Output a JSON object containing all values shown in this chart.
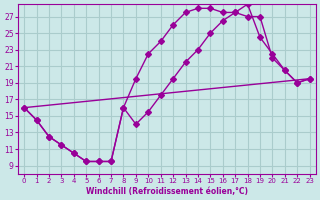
{
  "xlabel": "Windchill (Refroidissement éolien,°C)",
  "bg_color": "#cce8e8",
  "grid_color": "#aacccc",
  "line_color": "#990099",
  "marker_color": "#990099",
  "xlim": [
    -0.5,
    23.5
  ],
  "ylim": [
    8,
    28.5
  ],
  "xticks": [
    0,
    1,
    2,
    3,
    4,
    5,
    6,
    7,
    8,
    9,
    10,
    11,
    12,
    13,
    14,
    15,
    16,
    17,
    18,
    19,
    20,
    21,
    22,
    23
  ],
  "yticks": [
    9,
    11,
    13,
    15,
    17,
    19,
    21,
    23,
    25,
    27
  ],
  "series1_x": [
    0,
    1,
    2,
    3,
    4,
    5,
    6,
    7,
    8,
    9,
    10,
    11,
    12,
    13,
    14,
    15,
    16,
    17,
    18,
    19,
    20,
    21,
    22,
    23
  ],
  "series1_y": [
    16.0,
    14.5,
    12.5,
    11.5,
    10.5,
    9.5,
    9.5,
    9.5,
    16.0,
    19.5,
    22.5,
    24.0,
    26.0,
    27.5,
    28.0,
    28.0,
    27.5,
    27.5,
    27.0,
    27.0,
    22.0,
    20.5,
    19.0,
    19.5
  ],
  "series2_x": [
    0,
    1,
    2,
    3,
    4,
    5,
    6,
    7,
    8,
    9,
    10,
    11,
    12,
    13,
    14,
    15,
    16,
    17,
    18,
    19,
    20,
    21,
    22,
    23
  ],
  "series2_y": [
    16.0,
    14.5,
    12.5,
    11.5,
    10.5,
    9.5,
    9.5,
    9.5,
    16.0,
    14.0,
    15.5,
    17.5,
    19.5,
    21.5,
    23.0,
    25.0,
    26.5,
    27.5,
    28.5,
    24.5,
    22.5,
    20.5,
    19.0,
    19.5
  ],
  "series3_x": [
    0,
    23
  ],
  "series3_y": [
    16.0,
    19.5
  ]
}
